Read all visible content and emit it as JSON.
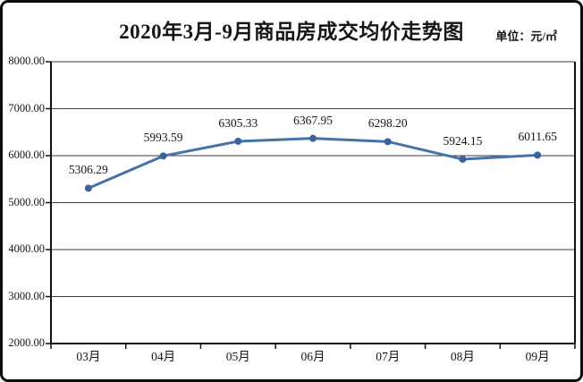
{
  "title": "2020年3月-9月商品房成交均价走势图",
  "unit": "单位：元/㎡",
  "chart_data": {
    "type": "line",
    "title": "2020年3月-9月商品房成交均价走势图",
    "unit_label": "单位：元/㎡",
    "categories": [
      "03月",
      "04月",
      "05月",
      "06月",
      "07月",
      "08月",
      "09月"
    ],
    "values": [
      5306.29,
      5993.59,
      6305.33,
      6367.95,
      6298.2,
      5924.15,
      6011.65
    ],
    "point_labels": [
      "5306.29",
      "5993.59",
      "6305.33",
      "6367.95",
      "6298.20",
      "5924.15",
      "6011.65"
    ],
    "ylim": [
      2000,
      8000
    ],
    "y_tick_step": 1000,
    "y_tick_labels": [
      "2000.00",
      "3000.00",
      "4000.00",
      "5000.00",
      "6000.00",
      "7000.00",
      "8000.00"
    ],
    "xlabel": "",
    "ylabel": "",
    "grid": true,
    "legend_position": "none",
    "colors": {
      "line": "#4473a8",
      "marker": "#3a639e",
      "gridline": "#3b3b3b",
      "axis": "#111111",
      "text": "#161616",
      "border": "#0c0c0c"
    }
  }
}
